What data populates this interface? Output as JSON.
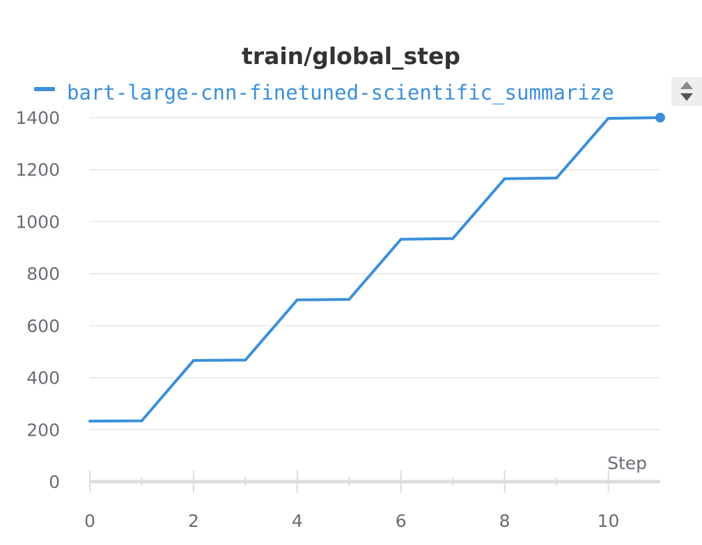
{
  "chart_data": {
    "type": "line",
    "title": "train/global_step",
    "xlabel": "Step",
    "ylabel": "",
    "xlim": [
      0,
      11
    ],
    "ylim": [
      0,
      1400
    ],
    "x_ticks": [
      0,
      2,
      4,
      6,
      8,
      10
    ],
    "y_ticks": [
      0,
      200,
      400,
      600,
      800,
      1000,
      1200,
      1400
    ],
    "grid": true,
    "legend_placement": "top",
    "series": [
      {
        "name": "bart-large-cnn-finetuned-scientific_summarize",
        "color": "#3b8fd9",
        "x": [
          0,
          1,
          2,
          3,
          4,
          5,
          6,
          7,
          8,
          9,
          10,
          11
        ],
        "y": [
          233,
          234,
          466,
          468,
          699,
          701,
          932,
          935,
          1165,
          1168,
          1397,
          1400
        ]
      }
    ]
  },
  "controls": {
    "legend_scroll_up_icon": "triangle-up",
    "legend_scroll_down_icon": "triangle-down"
  }
}
